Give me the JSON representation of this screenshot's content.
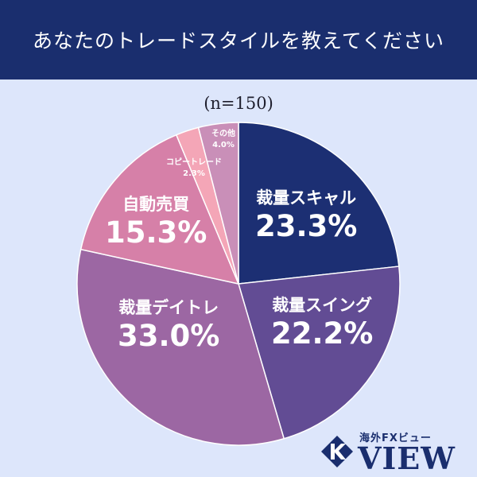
{
  "header": {
    "title": "あなたのトレードスタイルを教えてください"
  },
  "sample": {
    "text": "(n=150)"
  },
  "chart_data": {
    "type": "pie",
    "title": "あなたのトレードスタイルを教えてください",
    "subtitle": "(n=150)",
    "start_angle_deg": 0,
    "direction": "clockwise",
    "slices": [
      {
        "label": "裁量スキャル",
        "value": 23.3,
        "value_label": "23.3%",
        "color": "#1c2f73"
      },
      {
        "label": "裁量スイング",
        "value": 22.2,
        "value_label": "22.2%",
        "color": "#624c94"
      },
      {
        "label": "裁量デイトレ",
        "value": 33.0,
        "value_label": "33.0%",
        "color": "#9c67a3"
      },
      {
        "label": "自動売買",
        "value": 15.3,
        "value_label": "15.3%",
        "color": "#d680a8"
      },
      {
        "label": "コピートレード",
        "value": 2.3,
        "value_label": "2.3%",
        "color": "#f4a6b7"
      },
      {
        "label": "その他",
        "value": 4.0,
        "value_label": "4.0%",
        "color": "#c98fb8"
      }
    ]
  },
  "logo": {
    "sub": "海外FXビュー",
    "main": "VIEW"
  }
}
